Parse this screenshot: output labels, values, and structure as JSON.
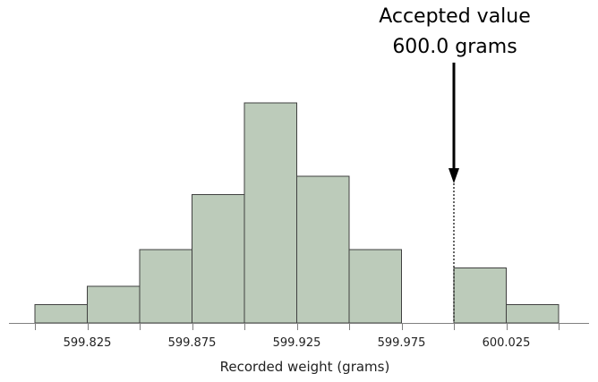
{
  "chart_data": {
    "type": "histogram",
    "xlabel": "Recorded weight (grams)",
    "ylabel": "",
    "title": "",
    "bin_width": 0.025,
    "bins": [
      {
        "start": 599.8,
        "end": 599.825,
        "count": 1
      },
      {
        "start": 599.825,
        "end": 599.85,
        "count": 2
      },
      {
        "start": 599.85,
        "end": 599.875,
        "count": 4
      },
      {
        "start": 599.875,
        "end": 599.9,
        "count": 7
      },
      {
        "start": 599.9,
        "end": 599.925,
        "count": 12
      },
      {
        "start": 599.925,
        "end": 599.95,
        "count": 8
      },
      {
        "start": 599.95,
        "end": 599.975,
        "count": 4
      },
      {
        "start": 599.975,
        "end": 600.0,
        "count": 0
      },
      {
        "start": 600.0,
        "end": 600.025,
        "count": 3
      },
      {
        "start": 600.025,
        "end": 600.05,
        "count": 1
      }
    ],
    "xlim": [
      599.8,
      600.05
    ],
    "ylim": [
      0,
      12
    ],
    "x_ticks": [
      599.8,
      599.825,
      599.85,
      599.875,
      599.9,
      599.925,
      599.95,
      599.975,
      600.0,
      600.025,
      600.05
    ],
    "x_tick_labels": [
      "599.825",
      "599.875",
      "599.925",
      "599.975",
      "600.025"
    ],
    "labeled_tick_values": [
      599.825,
      599.875,
      599.925,
      599.975,
      600.025
    ],
    "bar_color": "#bccbba",
    "bar_edge_color": "#404040",
    "reference_line": {
      "x": 600.0,
      "annotation_line1": "Accepted value",
      "annotation_line2": "600.0 grams"
    }
  }
}
